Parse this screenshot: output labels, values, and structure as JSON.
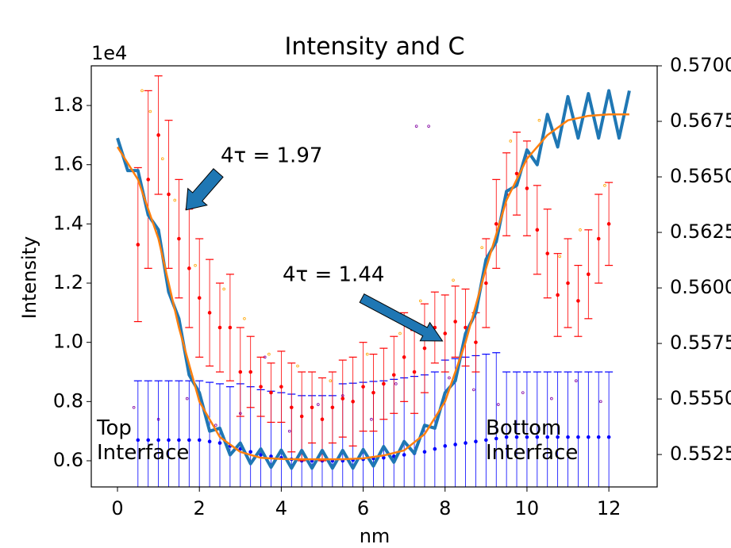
{
  "chart_data": {
    "type": "errorbar",
    "title": "Intensity and C",
    "x_label": "nm",
    "y_label": "Intensity",
    "y_offset_label": "1e4",
    "xlim": [
      -0.64,
      13.18
    ],
    "ylim": [
      5116,
      19340
    ],
    "y2lim": [
      0.55104,
      0.57
    ],
    "xticks": [
      0,
      2,
      4,
      6,
      8,
      10,
      12
    ],
    "yticks": [
      {
        "value": 6000,
        "label": "0.6"
      },
      {
        "value": 8000,
        "label": "0.8"
      },
      {
        "value": 10000,
        "label": "1.0"
      },
      {
        "value": 12000,
        "label": "1.2"
      },
      {
        "value": 14000,
        "label": "1.4"
      },
      {
        "value": 16000,
        "label": "1.6"
      },
      {
        "value": 18000,
        "label": "1.8"
      }
    ],
    "y2ticks": [
      {
        "value": 0.5525,
        "label": "0.5525"
      },
      {
        "value": 0.555,
        "label": "0.5550"
      },
      {
        "value": 0.5575,
        "label": "0.5575"
      },
      {
        "value": 0.56,
        "label": "0.5600"
      },
      {
        "value": 0.5625,
        "label": "0.5625"
      },
      {
        "value": 0.565,
        "label": "0.5650"
      },
      {
        "value": 0.5675,
        "label": "0.5675"
      },
      {
        "value": 0.57,
        "label": "0.5700"
      }
    ],
    "annotations": [
      {
        "text": "4τ = 1.97"
      },
      {
        "text": "4τ = 1.44"
      },
      {
        "text": "Top Interface"
      },
      {
        "text": "Bottom Interface"
      }
    ],
    "series": [
      {
        "type": "scatter",
        "color": "#ffa500",
        "x": [
          0.6,
          0.8,
          1.1,
          1.4,
          1.9,
          2.6,
          3.1,
          3.7,
          4.4,
          5.2,
          6.1,
          6.9,
          7.4,
          8.2,
          8.9,
          9.6,
          10.3,
          10.8,
          11.3,
          11.9
        ],
        "values": [
          18500,
          17800,
          16200,
          14800,
          12600,
          11800,
          10800,
          9600,
          9200,
          8700,
          9600,
          10300,
          11400,
          12100,
          13200,
          16800,
          17500,
          12900,
          13800,
          15300
        ]
      },
      {
        "type": "scatter",
        "color": "#8000a0",
        "x": [
          0.4,
          1.0,
          1.7,
          2.4,
          3.0,
          3.6,
          4.2,
          4.9,
          5.5,
          6.2,
          6.8,
          7.3,
          7.6,
          8.1,
          8.7,
          9.3,
          9.9,
          10.6,
          11.2,
          11.8
        ],
        "values": [
          7800,
          7400,
          8100,
          7200,
          7600,
          9500,
          7000,
          7900,
          8200,
          7400,
          8600,
          17300,
          17300,
          8800,
          8400,
          7900,
          8300,
          8100,
          8700,
          8000
        ]
      },
      {
        "type": "errorbar",
        "color": "#0000ff",
        "x": [
          0.5,
          0.75,
          1,
          1.25,
          1.5,
          1.75,
          2,
          2.25,
          2.5,
          2.75,
          3,
          3.25,
          3.5,
          3.75,
          4,
          4.25,
          4.5,
          4.75,
          5,
          5.25,
          5.5,
          5.75,
          6,
          6.25,
          6.5,
          6.75,
          7,
          7.25,
          7.5,
          7.75,
          8,
          8.25,
          8.5,
          8.75,
          9,
          9.25,
          9.5,
          9.75,
          10,
          10.25,
          10.5,
          10.75,
          11,
          11.25,
          11.5,
          11.75,
          12
        ],
        "values": [
          6700,
          6700,
          6700,
          6700,
          6700,
          6700,
          6700,
          6650,
          6600,
          6500,
          6400,
          6300,
          6200,
          6150,
          6100,
          6050,
          6000,
          6000,
          6000,
          6000,
          6000,
          6020,
          6050,
          6080,
          6100,
          6150,
          6200,
          6250,
          6300,
          6400,
          6500,
          6550,
          6600,
          6650,
          6700,
          6750,
          6800,
          6800,
          6800,
          6800,
          6800,
          6800,
          6800,
          6800,
          6800,
          6800,
          6800
        ],
        "errors": [
          2000,
          2000,
          2000,
          2000,
          2000,
          2000,
          2000,
          2000,
          2000,
          2000,
          2200,
          2200,
          2200,
          2200,
          2200,
          2200,
          2200,
          2200,
          2200,
          2200,
          2600,
          2600,
          2600,
          2600,
          2600,
          2600,
          2600,
          2600,
          2600,
          2600,
          2900,
          2900,
          2900,
          2900,
          2900,
          2900,
          2200,
          2200,
          2200,
          2200,
          2200,
          2200,
          2200,
          2200,
          2200,
          2200,
          2200
        ]
      },
      {
        "type": "errorbar",
        "color": "#ff0000",
        "x": [
          0.5,
          0.75,
          1,
          1.25,
          1.5,
          1.75,
          2,
          2.25,
          2.5,
          2.75,
          3,
          3.25,
          3.5,
          3.75,
          4,
          4.25,
          4.5,
          4.75,
          5,
          5.25,
          5.5,
          5.75,
          6,
          6.25,
          6.5,
          6.75,
          7,
          7.25,
          7.5,
          7.75,
          8,
          8.25,
          8.5,
          8.75,
          9,
          9.25,
          9.5,
          9.75,
          10,
          10.25,
          10.5,
          10.75,
          11,
          11.25,
          11.5,
          11.75,
          12
        ],
        "values": [
          13300,
          15500,
          17000,
          15000,
          13500,
          12500,
          11500,
          11000,
          10500,
          10500,
          9000,
          9000,
          8500,
          8300,
          8500,
          7800,
          7500,
          7800,
          7400,
          7800,
          8100,
          8000,
          8500,
          8300,
          8600,
          8900,
          9500,
          9000,
          9800,
          10500,
          10300,
          10700,
          10500,
          10000,
          12000,
          14000,
          15000,
          15700,
          15200,
          13800,
          13000,
          11600,
          12000,
          11400,
          12300,
          13500,
          14000
        ],
        "errors": [
          2600,
          3000,
          2000,
          2500,
          2000,
          2000,
          2000,
          1800,
          1500,
          1800,
          1500,
          1200,
          1000,
          1000,
          1200,
          1500,
          1500,
          1200,
          1400,
          1200,
          1300,
          1500,
          1500,
          1300,
          1200,
          1300,
          1500,
          1400,
          1500,
          1200,
          1300,
          1200,
          1300,
          1000,
          1500,
          1500,
          1400,
          1400,
          1600,
          1500,
          1500,
          1400,
          1500,
          1200,
          1500,
          1500,
          1400
        ]
      },
      {
        "type": "line",
        "color": "#1f77b4",
        "width": 4,
        "x": [
          0,
          0.25,
          0.5,
          0.75,
          1,
          1.25,
          1.5,
          1.75,
          2,
          2.25,
          2.5,
          2.75,
          3,
          3.25,
          3.5,
          3.75,
          4,
          4.25,
          4.5,
          4.75,
          5,
          5.25,
          5.5,
          5.75,
          6,
          6.25,
          6.5,
          6.75,
          7,
          7.25,
          7.5,
          7.75,
          8,
          8.25,
          8.5,
          8.75,
          9,
          9.25,
          9.5,
          9.75,
          10,
          10.25,
          10.5,
          10.75,
          11,
          11.25,
          11.5,
          11.75,
          12,
          12.25,
          12.5
        ],
        "values": [
          16900,
          15800,
          15800,
          14300,
          13800,
          11700,
          10800,
          8900,
          8300,
          7000,
          7100,
          6200,
          6600,
          5900,
          6400,
          5780,
          6360,
          5750,
          6350,
          5750,
          6350,
          5750,
          6350,
          5750,
          6380,
          5820,
          6480,
          5950,
          6650,
          6250,
          7200,
          7100,
          8300,
          8700,
          10300,
          11000,
          12800,
          13400,
          15100,
          15300,
          16500,
          16000,
          17700,
          16600,
          18300,
          16900,
          18400,
          16900,
          18500,
          16900,
          18500
        ]
      },
      {
        "type": "line",
        "color": "#ff7f0e",
        "width": 2.5,
        "x": [
          0,
          0.5,
          1,
          1.5,
          2,
          2.5,
          3,
          3.5,
          4,
          4.5,
          5,
          5.5,
          6,
          6.5,
          7,
          7.5,
          8,
          8.5,
          9,
          9.5,
          10,
          10.5,
          11,
          11.5,
          12,
          12.5
        ],
        "values": [
          16600,
          15500,
          13500,
          10500,
          8000,
          6800,
          6300,
          6100,
          6060,
          6050,
          6050,
          6050,
          6080,
          6180,
          6350,
          6900,
          8000,
          10000,
          12500,
          14800,
          16200,
          17000,
          17500,
          17650,
          17700,
          17700
        ]
      }
    ]
  }
}
